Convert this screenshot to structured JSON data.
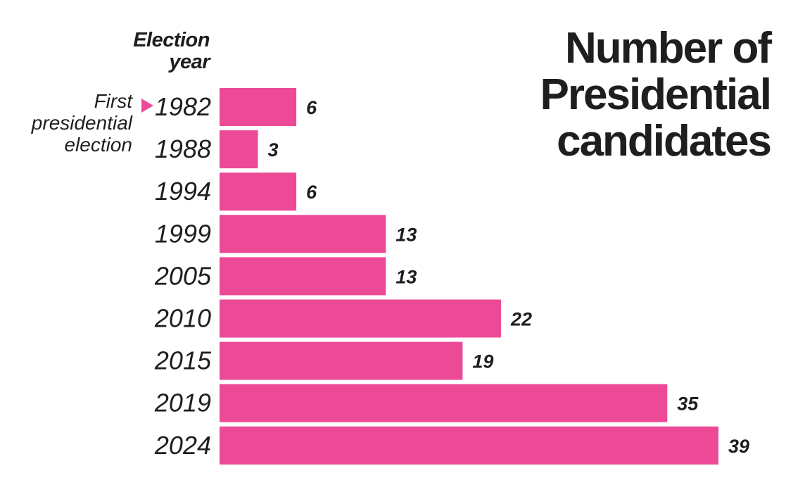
{
  "chart_data": {
    "type": "bar",
    "orientation": "horizontal",
    "title": "Number of Presidential candidates",
    "ylabel": "Election year",
    "categories": [
      "1982",
      "1988",
      "1994",
      "1999",
      "2005",
      "2010",
      "2015",
      "2019",
      "2024"
    ],
    "values": [
      6,
      3,
      6,
      13,
      13,
      22,
      19,
      35,
      39
    ],
    "annotation": {
      "text": "First presidential election",
      "target": "1982"
    },
    "bar_color": "#ec4a97",
    "grid": false,
    "xlim": [
      0,
      39
    ]
  }
}
